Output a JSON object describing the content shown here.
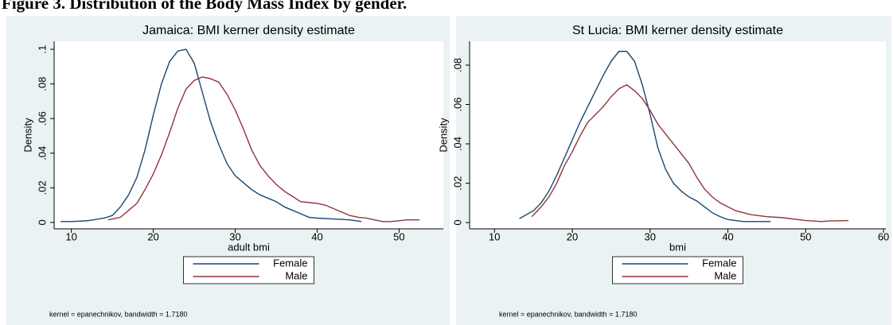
{
  "figure_title": "Figure 3. Distribution of the Body Mass Index by gender.",
  "chart_data": [
    {
      "type": "line",
      "title": "Jamaica: BMI kerner density estimate",
      "xlabel": "adult bmi",
      "ylabel": "Density",
      "note": "kernel = epanechnikov, bandwidth = 1.7180",
      "xlim": [
        7.9,
        55.4
      ],
      "xticks": [
        10,
        20,
        30,
        40,
        50
      ],
      "ylim": [
        -0.0037,
        0.1046
      ],
      "yticks": [
        0,
        {
          "value": 0.02,
          "label": ".02"
        },
        {
          "value": 0.04,
          "label": ".04"
        },
        {
          "value": 0.06,
          "label": ".06"
        },
        {
          "value": 0.08,
          "label": ".08"
        },
        {
          "value": 0.1,
          "label": ".1"
        }
      ],
      "series": [
        {
          "name": "Female",
          "color": "#1a476f",
          "x": [
            8.7,
            10,
            12,
            14,
            15,
            16,
            17,
            18,
            19,
            20,
            21,
            22,
            23,
            24,
            25,
            26,
            27,
            28,
            29,
            30,
            31,
            32,
            33,
            34,
            35,
            36,
            37,
            38,
            39,
            40,
            42,
            44,
            45.4
          ],
          "values": [
            0.0005,
            0.0005,
            0.001,
            0.0025,
            0.004,
            0.009,
            0.016,
            0.026,
            0.042,
            0.062,
            0.08,
            0.093,
            0.099,
            0.1,
            0.092,
            0.075,
            0.058,
            0.045,
            0.034,
            0.027,
            0.023,
            0.019,
            0.016,
            0.014,
            0.012,
            0.009,
            0.007,
            0.005,
            0.003,
            0.0025,
            0.002,
            0.0015,
            0.0005
          ]
        },
        {
          "name": "Male",
          "color": "#90353b",
          "x": [
            14.5,
            16,
            17,
            18,
            19,
            20,
            21,
            22,
            23,
            24,
            25,
            26,
            27,
            28,
            29,
            30,
            31,
            32,
            33,
            34,
            35,
            36,
            37,
            38,
            39,
            40,
            41,
            42,
            43,
            44,
            45,
            46,
            47,
            48,
            49,
            50,
            51,
            52.5
          ],
          "values": [
            0.0015,
            0.003,
            0.007,
            0.011,
            0.019,
            0.028,
            0.039,
            0.052,
            0.066,
            0.077,
            0.082,
            0.084,
            0.083,
            0.081,
            0.074,
            0.065,
            0.054,
            0.042,
            0.033,
            0.027,
            0.022,
            0.018,
            0.015,
            0.012,
            0.0115,
            0.011,
            0.01,
            0.008,
            0.006,
            0.004,
            0.003,
            0.0025,
            0.0015,
            0.0005,
            0.0005,
            0.001,
            0.0015,
            0.0015
          ]
        }
      ]
    },
    {
      "type": "line",
      "title": "St Lucia: BMI kerner density estimate",
      "xlabel": "bmi",
      "ylabel": "Density",
      "note": "kernel = epanechnikov, bandwidth = 1.7180",
      "xlim": [
        6.8,
        60.3
      ],
      "xticks": [
        10,
        20,
        30,
        40,
        50,
        60
      ],
      "ylim": [
        -0.0032,
        0.0921
      ],
      "yticks": [
        0,
        {
          "value": 0.02,
          "label": ".02"
        },
        {
          "value": 0.04,
          "label": ".04"
        },
        {
          "value": 0.06,
          "label": ".06"
        },
        {
          "value": 0.08,
          "label": ".08"
        }
      ],
      "series": [
        {
          "name": "Female",
          "color": "#1a476f",
          "x": [
            13.2,
            15,
            16,
            17,
            18,
            19,
            20,
            21,
            22,
            23,
            24,
            25,
            26,
            27,
            28,
            29,
            30,
            31,
            32,
            33,
            34,
            35,
            36,
            37,
            38,
            39,
            40,
            42,
            45.5
          ],
          "values": [
            0.002,
            0.006,
            0.01,
            0.016,
            0.024,
            0.033,
            0.042,
            0.051,
            0.059,
            0.067,
            0.075,
            0.082,
            0.087,
            0.087,
            0.082,
            0.07,
            0.055,
            0.038,
            0.027,
            0.02,
            0.016,
            0.013,
            0.011,
            0.008,
            0.005,
            0.003,
            0.0015,
            0.0005,
            0.0005
          ]
        },
        {
          "name": "Male",
          "color": "#90353b",
          "x": [
            14.8,
            16,
            17,
            18,
            19,
            20,
            21,
            22,
            23,
            24,
            25,
            26,
            27,
            28,
            29,
            30,
            31,
            32,
            33,
            34,
            35,
            36,
            37,
            38,
            39,
            40,
            41,
            42,
            43,
            44,
            45,
            47,
            48,
            49,
            50,
            51,
            52,
            53,
            55.5
          ],
          "values": [
            0.003,
            0.008,
            0.013,
            0.02,
            0.029,
            0.036,
            0.044,
            0.051,
            0.055,
            0.059,
            0.064,
            0.068,
            0.07,
            0.067,
            0.063,
            0.057,
            0.05,
            0.045,
            0.04,
            0.035,
            0.03,
            0.023,
            0.017,
            0.013,
            0.01,
            0.008,
            0.006,
            0.005,
            0.004,
            0.0035,
            0.003,
            0.0025,
            0.002,
            0.0015,
            0.001,
            0.0008,
            0.0005,
            0.0008,
            0.001
          ]
        }
      ]
    }
  ]
}
